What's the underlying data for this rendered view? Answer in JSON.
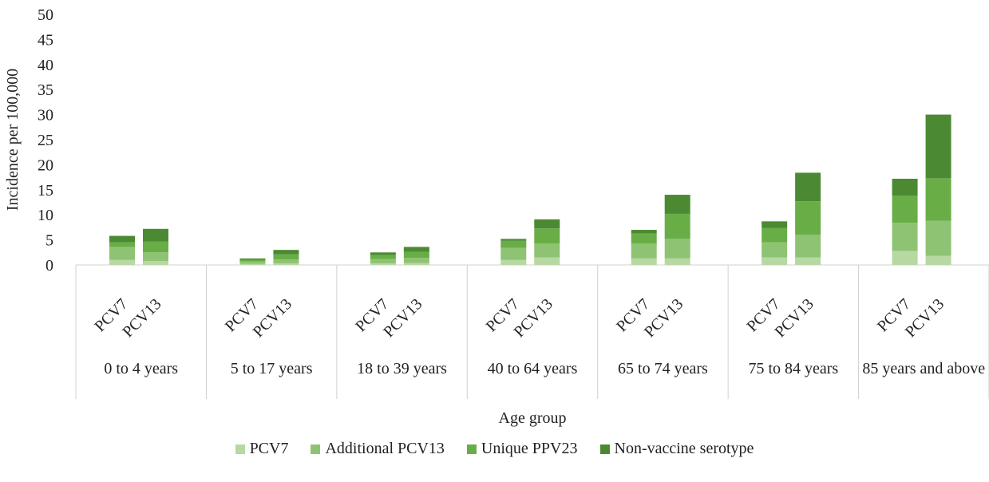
{
  "chart_data": {
    "type": "stacked-bar",
    "y_label": "Incidence per 100,000",
    "x_label": "Age group",
    "groups": [
      "0 to 4 years",
      "5 to 17 years",
      "18 to 39 years",
      "40 to 64 years",
      "65 to 74 years",
      "75 to 84 years",
      "85 years and above"
    ],
    "categories": [
      "PCV7",
      "PCV13",
      "PCV7",
      "PCV13",
      "PCV7",
      "PCV13",
      "PCV7",
      "PCV13",
      "PCV7",
      "PCV13",
      "PCV7",
      "PCV13",
      "PCV7",
      "PCV13"
    ],
    "series": [
      {
        "name": "PCV7",
        "color": "#b7d7a3",
        "values": [
          1.0,
          0.8,
          0.2,
          0.3,
          0.3,
          0.4,
          1.0,
          1.5,
          1.3,
          1.3,
          1.5,
          1.5,
          2.8,
          1.8
        ]
      },
      {
        "name": "Additional PCV13",
        "color": "#8fc374",
        "values": [
          2.6,
          1.7,
          0.5,
          0.8,
          0.9,
          1.0,
          2.4,
          2.8,
          3.0,
          3.9,
          3.0,
          4.5,
          5.6,
          7.0
        ]
      },
      {
        "name": "Unique PPV23",
        "color": "#69ad47",
        "values": [
          0.9,
          2.2,
          0.3,
          1.0,
          0.8,
          1.2,
          1.4,
          3.0,
          2.0,
          5.0,
          2.9,
          6.7,
          5.4,
          8.5
        ]
      },
      {
        "name": "Non-vaccine serotype",
        "color": "#4b8a33",
        "values": [
          1.3,
          2.5,
          0.3,
          0.9,
          0.5,
          1.0,
          0.4,
          1.8,
          0.7,
          3.8,
          1.3,
          5.7,
          3.4,
          12.7
        ]
      }
    ],
    "ylim": [
      0,
      50
    ],
    "yticks": [
      0,
      5,
      10,
      15,
      20,
      25,
      30,
      35,
      40,
      45,
      50
    ],
    "grid": false,
    "legend": "bottom"
  }
}
